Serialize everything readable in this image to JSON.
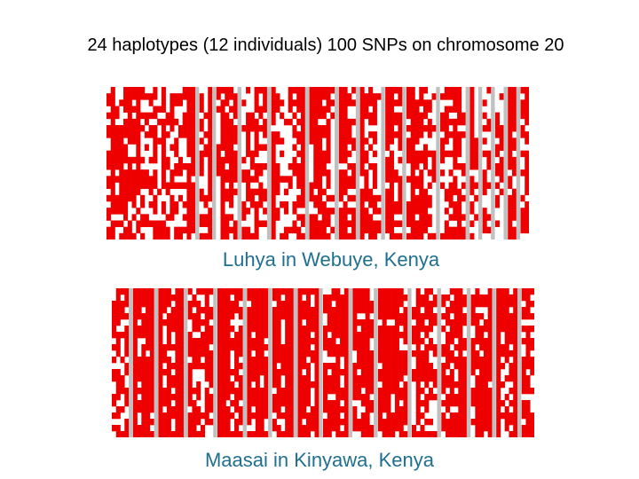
{
  "title": "24 haplotypes (12 individuals) 100 SNPs on chromosome 20",
  "colors": {
    "allele_a": "#ee0000",
    "allele_b": "#ffffff",
    "missing": "#c0c0c0",
    "label": "#1f6f8f",
    "title": "#000000"
  },
  "panels": [
    {
      "label": "Luhya in Webuye, Kenya",
      "n_haplotypes": 24,
      "n_snps": 100,
      "seed": 17,
      "red_fraction": 0.66,
      "gray_columns": [
        21,
        25,
        31,
        38,
        47,
        54,
        59,
        65,
        70,
        78,
        85,
        88,
        91,
        94,
        97
      ]
    },
    {
      "label": "Maasai in Kinyawa, Kenya",
      "n_haplotypes": 24,
      "n_snps": 100,
      "seed": 41,
      "red_fraction": 0.86,
      "gray_columns": [
        4,
        10,
        17,
        24,
        31,
        37,
        43,
        49,
        56,
        62,
        70,
        77,
        84,
        90,
        96
      ]
    }
  ]
}
